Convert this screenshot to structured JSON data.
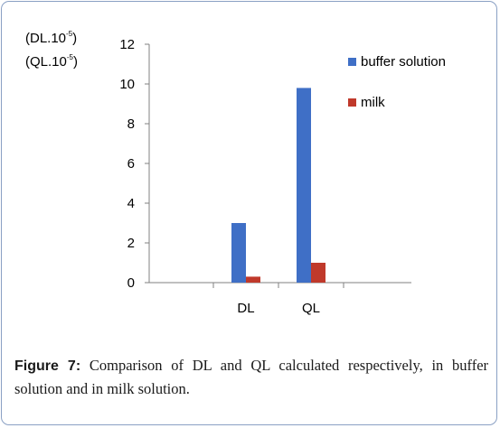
{
  "chart_data": {
    "type": "bar",
    "categories": [
      "DL",
      "QL"
    ],
    "series": [
      {
        "name": "buffer solution",
        "values": [
          3.0,
          9.8
        ],
        "color": "#3f6fc6"
      },
      {
        "name": "milk",
        "values": [
          0.3,
          1.0
        ],
        "color": "#c0392b"
      }
    ],
    "ylim": [
      0,
      12
    ],
    "yticks": [
      "0",
      "2",
      "4",
      "6",
      "8",
      "10",
      "12"
    ],
    "ylabel_line1": "(DL.10",
    "ylabel_line1_exp": "-5",
    "ylabel_line2": "(QL.10",
    "ylabel_line2_exp": "-5",
    "xlabel": "",
    "title": "",
    "legend_position": "right",
    "grid": false
  },
  "caption": {
    "label": "Figure 7:",
    "text": "Comparison of DL and QL calculated respectively, in buffer solution and in milk solution."
  },
  "colors": {
    "frame_border": "#8aa0c4",
    "axis": "#808080"
  }
}
